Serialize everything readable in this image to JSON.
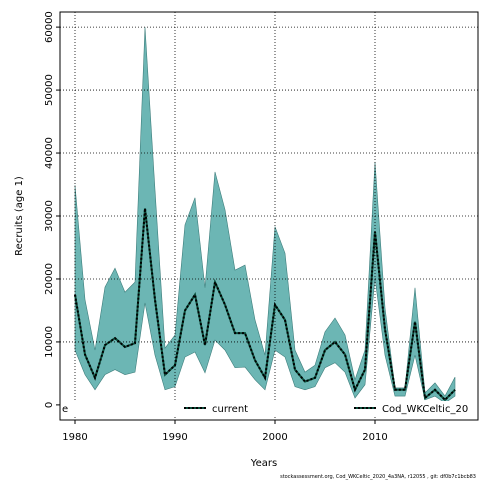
{
  "chart_data": {
    "type": "line",
    "x_label": "Years",
    "y_label": "Recruits (age 1)",
    "footer": "stockassessment.org, Cod_WKCeltic_2020_4a3NA, r12055 , git: df0b7c1bcb83",
    "legend": [
      "e",
      "current",
      "Cod_WKCeltic_20"
    ],
    "x": [
      1980,
      1981,
      1982,
      1983,
      1984,
      1985,
      1986,
      1987,
      1988,
      1989,
      1990,
      1991,
      1992,
      1993,
      1994,
      1995,
      1996,
      1997,
      1998,
      1999,
      2000,
      2001,
      2002,
      2003,
      2004,
      2005,
      2006,
      2007,
      2008,
      2009,
      2010,
      2011,
      2012,
      2013,
      2014,
      2015,
      2016,
      2017,
      2018
    ],
    "series": [
      {
        "name": "current",
        "color": "#000000",
        "values": [
          17500,
          8000,
          4300,
          9500,
          10600,
          9200,
          9800,
          31200,
          16700,
          4800,
          6300,
          15000,
          17500,
          9500,
          19500,
          15900,
          11400,
          11400,
          7100,
          4300,
          15900,
          13500,
          5600,
          3700,
          4300,
          8700,
          10000,
          8000,
          2400,
          5600,
          27500,
          12000,
          2400,
          2400,
          13200,
          1100,
          2400,
          800,
          2400
        ]
      }
    ],
    "band": {
      "color": "#6cb6b4",
      "edge": "#3d7d7b",
      "upper": [
        34900,
        16700,
        8700,
        18700,
        21700,
        17900,
        19500,
        60000,
        34100,
        9000,
        11100,
        28600,
        32900,
        18600,
        37000,
        31000,
        21400,
        22200,
        13500,
        7900,
        28300,
        24100,
        8700,
        5200,
        6300,
        11600,
        13800,
        11100,
        4000,
        8700,
        38600,
        15400,
        2700,
        2700,
        18600,
        1900,
        3500,
        1400,
        4400
      ],
      "lower": [
        8700,
        4800,
        2400,
        4800,
        5600,
        4800,
        5200,
        16200,
        7900,
        2400,
        2900,
        7600,
        8400,
        5100,
        10300,
        8700,
        5900,
        6000,
        4000,
        2400,
        8700,
        7600,
        2900,
        2400,
        2900,
        5900,
        6700,
        5200,
        1100,
        3200,
        20200,
        7900,
        1400,
        1400,
        7900,
        800,
        1400,
        300,
        1400
      ]
    },
    "legend_line_color": "#0b4d3a",
    "xlim": [
      1978.5,
      2020.3
    ],
    "ylim": [
      -2400,
      62400
    ],
    "xticks": [
      1980,
      1990,
      2000,
      2010
    ],
    "yticks": [
      0,
      10000,
      20000,
      30000,
      40000,
      50000,
      60000
    ],
    "grid": true
  }
}
